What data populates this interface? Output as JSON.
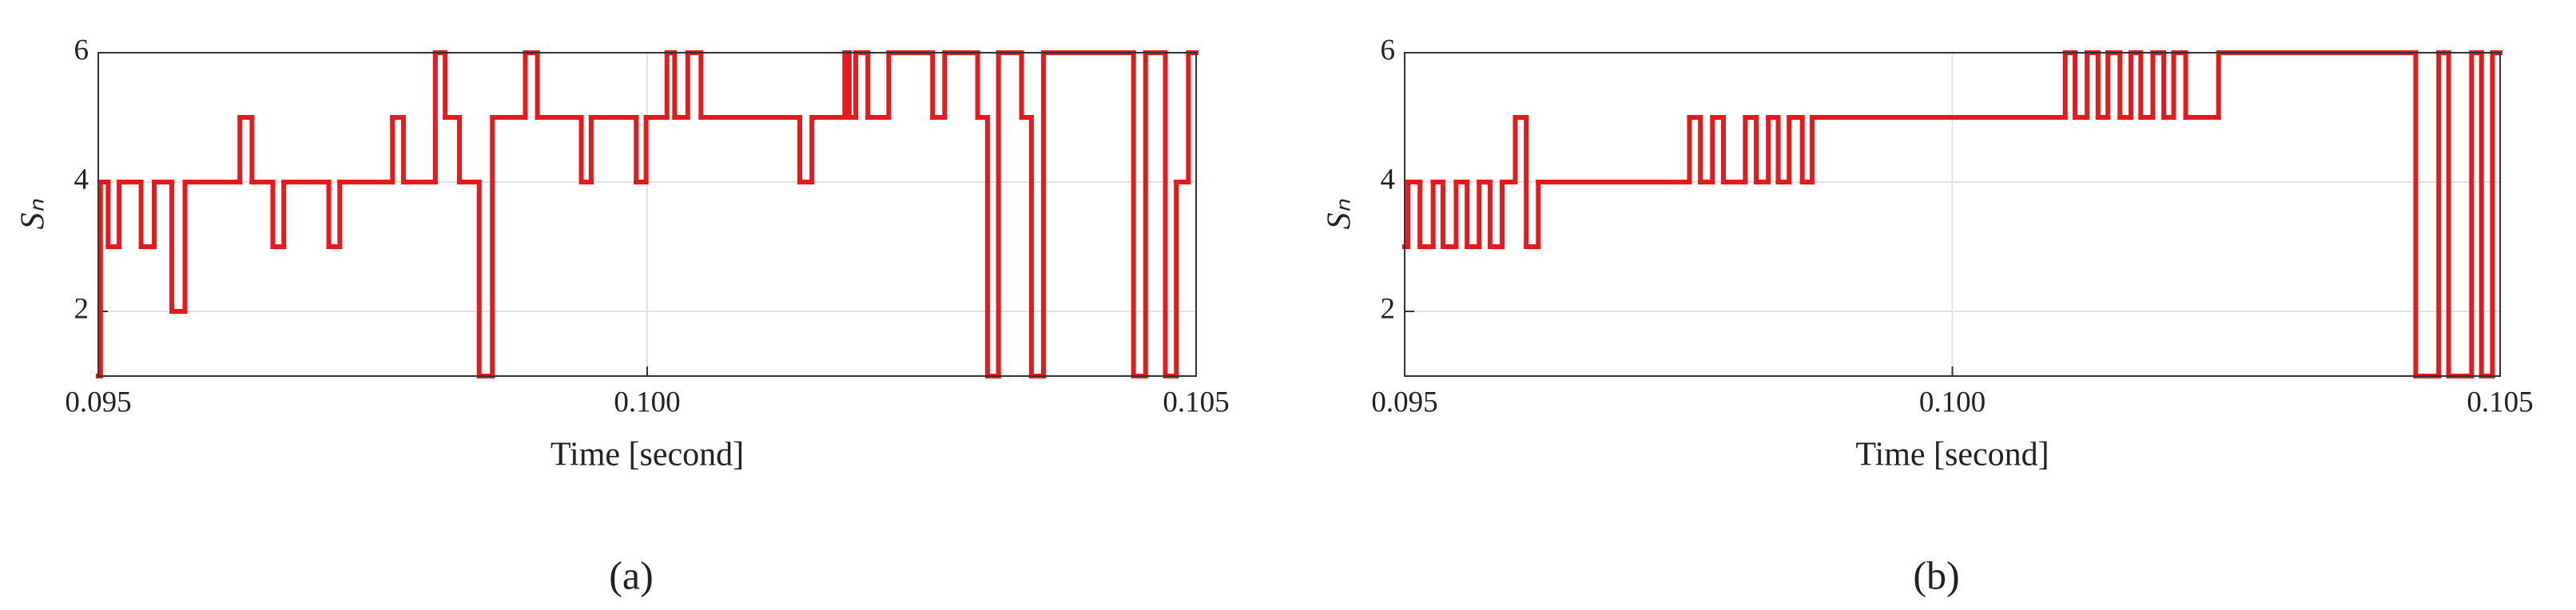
{
  "chart_data": [
    {
      "type": "line",
      "step": "post",
      "panel_label": "(a)",
      "x_label": "Time [second]",
      "y_label": "Sₙ",
      "color": "#e41a1c",
      "grid": true,
      "xlim": [
        0.095,
        0.105
      ],
      "ylim": [
        1,
        6
      ],
      "xticks": [
        {
          "value": 0.095,
          "label": "0.095"
        },
        {
          "value": 0.1,
          "label": "0.100"
        },
        {
          "value": 0.105,
          "label": "0.105"
        }
      ],
      "yticks": [
        2,
        4,
        6
      ],
      "x": [
        0.095,
        0.09502,
        0.09509,
        0.09519,
        0.09539,
        0.09551,
        0.09567,
        0.09579,
        0.09629,
        0.0964,
        0.09659,
        0.09669,
        0.0971,
        0.0972,
        0.09768,
        0.09778,
        0.09807,
        0.09816,
        0.09829,
        0.09847,
        0.09859,
        0.09889,
        0.099,
        0.0994,
        0.09949,
        0.0999,
        0.09999,
        0.10018,
        0.10025,
        0.10037,
        0.10049,
        0.10139,
        0.1015,
        0.1018,
        0.10184,
        0.1019,
        0.10201,
        0.1022,
        0.1026,
        0.10271,
        0.10301,
        0.1031,
        0.1032,
        0.10341,
        0.1035,
        0.10361,
        0.10443,
        0.10454,
        0.10472,
        0.10482,
        0.10493,
        0.105
      ],
      "values": [
        1,
        4,
        3,
        4,
        3,
        4,
        2,
        4,
        5,
        4,
        3,
        4,
        3,
        4,
        5,
        4,
        6,
        5,
        4,
        1,
        5,
        6,
        5,
        4,
        5,
        4,
        5,
        6,
        5,
        6,
        5,
        4,
        5,
        6,
        5,
        6,
        5,
        6,
        5,
        6,
        5,
        1,
        6,
        5,
        1,
        6,
        1,
        6,
        1,
        4,
        6,
        6
      ]
    },
    {
      "type": "line",
      "step": "post",
      "panel_label": "(b)",
      "x_label": "Time [second]",
      "y_label": "Sₙ",
      "color": "#e41a1c",
      "grid": true,
      "xlim": [
        0.095,
        0.105
      ],
      "ylim": [
        1,
        6
      ],
      "xticks": [
        {
          "value": 0.095,
          "label": "0.095"
        },
        {
          "value": 0.1,
          "label": "0.100"
        },
        {
          "value": 0.105,
          "label": "0.105"
        }
      ],
      "yticks": [
        2,
        4,
        6
      ],
      "x": [
        0.095,
        0.09503,
        0.09514,
        0.09526,
        0.09535,
        0.09547,
        0.09557,
        0.09568,
        0.09578,
        0.09589,
        0.09601,
        0.09611,
        0.09622,
        0.0976,
        0.0977,
        0.09781,
        0.09791,
        0.09811,
        0.09821,
        0.09832,
        0.09841,
        0.09851,
        0.09863,
        0.09872,
        0.10103,
        0.10112,
        0.10123,
        0.10133,
        0.10142,
        0.10153,
        0.10163,
        0.10172,
        0.10183,
        0.10193,
        0.10202,
        0.10213,
        0.10243,
        0.10423,
        0.10444,
        0.10453,
        0.10474,
        0.10483,
        0.10493,
        0.105
      ],
      "values": [
        3,
        4,
        3,
        4,
        3,
        4,
        3,
        4,
        3,
        4,
        5,
        3,
        4,
        5,
        4,
        5,
        4,
        5,
        4,
        5,
        4,
        5,
        4,
        5,
        6,
        5,
        6,
        5,
        6,
        5,
        6,
        5,
        6,
        5,
        6,
        5,
        6,
        1,
        6,
        1,
        6,
        1,
        6,
        6
      ]
    }
  ]
}
